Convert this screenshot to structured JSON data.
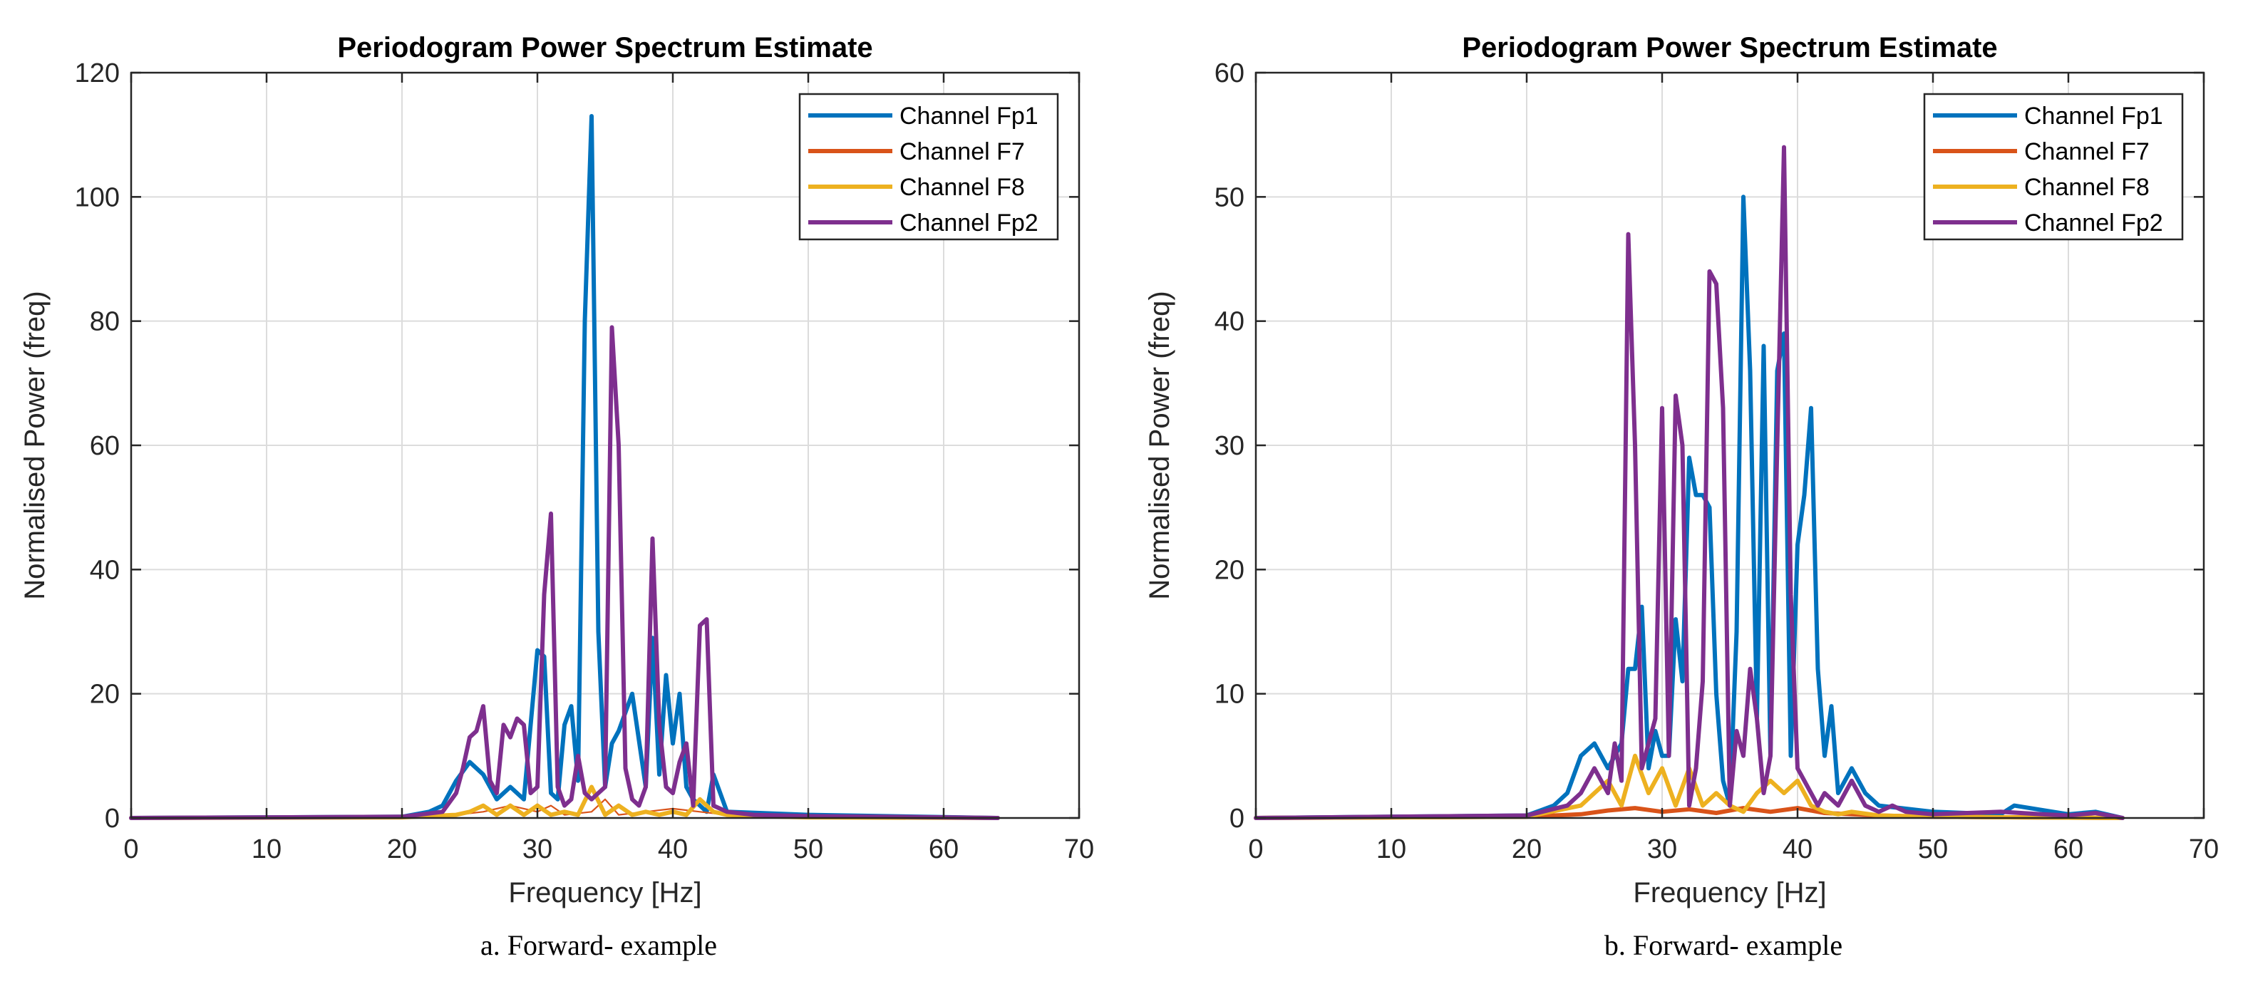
{
  "colors": {
    "Fp1": "#0072BD",
    "F7": "#D95319",
    "F8": "#EDB120",
    "Fp2": "#7E2F8E",
    "grid": "#dcdcdc",
    "axis": "#262626"
  },
  "chart_data": [
    {
      "type": "line",
      "title": "Periodogram Power Spectrum Estimate",
      "xlabel": "Frequency [Hz]",
      "ylabel": "Normalised Power (freq)",
      "caption": "a. Forward- example",
      "xlim": [
        0,
        70
      ],
      "ylim": [
        0,
        120
      ],
      "xticks": [
        0,
        10,
        20,
        30,
        40,
        50,
        60,
        70
      ],
      "yticks": [
        0,
        20,
        40,
        60,
        80,
        100,
        120
      ],
      "grid": true,
      "legend_position": "top-right",
      "series": [
        {
          "name": "Channel Fp1",
          "key": "Fp1",
          "x": [
            0,
            20,
            22,
            23,
            24,
            25,
            26,
            27,
            28,
            29,
            30,
            30.5,
            31,
            31.5,
            32,
            32.5,
            33,
            33.5,
            34,
            34.5,
            35,
            35.5,
            36,
            37,
            38,
            38.5,
            39,
            39.5,
            40,
            40.5,
            41,
            41.5,
            42,
            42.5,
            43,
            44,
            50,
            64
          ],
          "y": [
            0,
            0.2,
            1,
            2,
            6,
            9,
            7,
            3,
            5,
            3,
            27,
            26,
            4,
            3,
            15,
            18,
            6,
            80,
            113,
            30,
            5,
            12,
            14,
            20,
            5,
            29,
            7,
            23,
            12,
            20,
            5,
            3,
            2,
            1,
            7,
            1,
            0.5,
            0
          ]
        },
        {
          "name": "Channel F7",
          "key": "F7",
          "x": [
            0,
            20,
            24,
            26,
            28,
            30,
            31,
            32,
            34,
            35,
            36,
            38,
            40,
            42,
            44,
            46,
            50,
            64
          ],
          "y": [
            0,
            0.1,
            0.5,
            1,
            2,
            1,
            2,
            0.5,
            1,
            3,
            0.5,
            1,
            1.5,
            1,
            0.5,
            0.3,
            0.1,
            0
          ],
          "line_width": 2.2
        },
        {
          "name": "Channel F8",
          "key": "F8",
          "x": [
            0,
            20,
            24,
            25,
            26,
            27,
            28,
            29,
            30,
            31,
            32,
            33,
            34,
            35,
            36,
            37,
            38,
            39,
            40,
            41,
            42,
            43,
            44,
            46,
            50,
            64
          ],
          "y": [
            0,
            0.1,
            0.5,
            1,
            2,
            0.5,
            2,
            0.5,
            2,
            0.5,
            1,
            0.5,
            5,
            0.5,
            2,
            0.5,
            1,
            0.5,
            1,
            0.5,
            3,
            1,
            0.5,
            0.3,
            0.1,
            0
          ]
        },
        {
          "name": "Channel Fp2",
          "key": "Fp2",
          "x": [
            0,
            20,
            23,
            24,
            24.5,
            25,
            25.5,
            26,
            26.5,
            27,
            27.5,
            28,
            28.5,
            29,
            29.5,
            30,
            30.5,
            31,
            31.5,
            32,
            32.5,
            33,
            33.5,
            34,
            34.5,
            35,
            35.5,
            36,
            36.5,
            37,
            37.5,
            38,
            38.5,
            39,
            39.5,
            40,
            40.5,
            41,
            41.5,
            42,
            42.5,
            43,
            44,
            46,
            50,
            55,
            60,
            64
          ],
          "y": [
            0,
            0.2,
            1,
            4,
            8,
            13,
            14,
            18,
            6,
            4,
            15,
            13,
            16,
            15,
            4,
            5,
            36,
            49,
            5,
            2,
            3,
            10,
            4,
            3,
            4,
            5,
            79,
            60,
            8,
            3,
            2,
            5,
            45,
            15,
            5,
            4,
            9,
            12,
            2,
            31,
            32,
            2,
            1,
            0.5,
            0.3,
            0.2,
            0.1,
            0
          ]
        }
      ]
    },
    {
      "type": "line",
      "title": "Periodogram Power Spectrum Estimate",
      "xlabel": "Frequency [Hz]",
      "ylabel": "Normalised Power (freq)",
      "caption": "b. Forward- example",
      "xlim": [
        0,
        70
      ],
      "ylim": [
        0,
        60
      ],
      "xticks": [
        0,
        10,
        20,
        30,
        40,
        50,
        60,
        70
      ],
      "yticks": [
        0,
        10,
        20,
        30,
        40,
        50,
        60
      ],
      "grid": true,
      "legend_position": "top-right",
      "series": [
        {
          "name": "Channel Fp1",
          "key": "Fp1",
          "x": [
            0,
            20,
            22,
            23,
            24,
            25,
            26,
            27,
            27.5,
            28,
            28.5,
            29,
            29.5,
            30,
            30.5,
            31,
            31.5,
            32,
            32.5,
            33,
            33.5,
            34,
            34.5,
            35,
            35.5,
            36,
            36.5,
            37,
            37.5,
            38,
            38.5,
            39,
            39.5,
            40,
            40.5,
            41,
            41.5,
            42,
            42.5,
            43,
            43.5,
            44,
            45,
            46,
            50,
            55,
            56,
            60,
            62,
            64
          ],
          "y": [
            0,
            0.2,
            1,
            2,
            5,
            6,
            4,
            6,
            12,
            12,
            17,
            4,
            7,
            5,
            5,
            16,
            11,
            29,
            26,
            26,
            25,
            10,
            3,
            1,
            15,
            50,
            36,
            8,
            38,
            5,
            36,
            39,
            5,
            22,
            26,
            33,
            12,
            5,
            9,
            2,
            3,
            4,
            2,
            1,
            0.5,
            0.3,
            1,
            0.3,
            0.5,
            0
          ]
        },
        {
          "name": "Channel F7",
          "key": "F7",
          "x": [
            0,
            20,
            24,
            26,
            28,
            30,
            32,
            34,
            36,
            38,
            40,
            42,
            44,
            46,
            50,
            64
          ],
          "y": [
            0,
            0.1,
            0.3,
            0.6,
            0.8,
            0.5,
            0.7,
            0.4,
            0.8,
            0.5,
            0.8,
            0.4,
            0.3,
            0.2,
            0.1,
            0
          ]
        },
        {
          "name": "Channel F8",
          "key": "F8",
          "x": [
            0,
            20,
            24,
            25,
            26,
            27,
            28,
            29,
            30,
            31,
            32,
            33,
            34,
            35,
            36,
            37,
            38,
            39,
            40,
            41,
            42,
            43,
            44,
            46,
            50,
            64
          ],
          "y": [
            0,
            0.1,
            1,
            2,
            3,
            1,
            5,
            2,
            4,
            1,
            4,
            1,
            2,
            1,
            0.5,
            2,
            3,
            2,
            3,
            1,
            0.5,
            0.3,
            0.5,
            0.2,
            0.1,
            0
          ]
        },
        {
          "name": "Channel Fp2",
          "key": "Fp2",
          "x": [
            0,
            20,
            23,
            24,
            25,
            26,
            26.5,
            27,
            27.5,
            28,
            28.5,
            29,
            29.5,
            30,
            30.5,
            31,
            31.5,
            32,
            32.5,
            33,
            33.5,
            34,
            34.5,
            35,
            35.5,
            36,
            36.5,
            37,
            37.5,
            38,
            38.5,
            39,
            39.5,
            40,
            40.5,
            41,
            41.5,
            42,
            43,
            44,
            45,
            46,
            47,
            48,
            50,
            55,
            58,
            60,
            62,
            64
          ],
          "y": [
            0,
            0.2,
            1,
            2,
            4,
            2,
            6,
            3,
            47,
            30,
            4,
            6,
            8,
            33,
            5,
            34,
            30,
            1,
            4,
            11,
            44,
            43,
            33,
            1,
            7,
            5,
            12,
            8,
            2,
            5,
            30,
            54,
            18,
            4,
            3,
            2,
            1,
            2,
            1,
            3,
            1,
            0.5,
            1,
            0.5,
            0.3,
            0.5,
            0.3,
            0.2,
            0.4,
            0
          ]
        }
      ]
    }
  ]
}
